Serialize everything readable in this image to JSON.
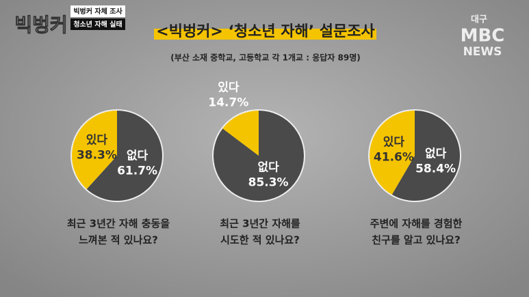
{
  "header": {
    "logo": "빅벙커",
    "tag1": "빅벙커 자체 조사",
    "tag2": "청소년 자해 실태",
    "station_top": "대구",
    "station_mid": "MBC",
    "station_bottom": "NEWS",
    "title": "<빅벙커> ‘청소년 자해’ 설문조사",
    "subtitle": "(부산 소재 중학교, 고등학교 각 1개교 : 응답자 89명)"
  },
  "chart_data": [
    {
      "type": "pie",
      "title_lines": [
        "최근 3년간 자해 충동을",
        "느껴본 적 있나요?"
      ],
      "categories": [
        "없다",
        "있다"
      ],
      "values": [
        61.7,
        38.3
      ],
      "value_labels": [
        "61.7%",
        "38.3%"
      ],
      "colors": [
        "#4a4a4a",
        "#f5c400"
      ]
    },
    {
      "type": "pie",
      "title_lines": [
        "최근 3년간 자해를",
        "시도한 적 있나요?"
      ],
      "categories": [
        "없다",
        "있다"
      ],
      "values": [
        85.3,
        14.7
      ],
      "value_labels": [
        "85.3%",
        "14.7%"
      ],
      "colors": [
        "#4a4a4a",
        "#f5c400"
      ]
    },
    {
      "type": "pie",
      "title_lines": [
        "주변에 자해를 경험한",
        "친구를 알고 있나요?"
      ],
      "categories": [
        "없다",
        "있다"
      ],
      "values": [
        58.4,
        41.6
      ],
      "value_labels": [
        "58.4%",
        "41.6%"
      ],
      "colors": [
        "#4a4a4a",
        "#f5c400"
      ]
    }
  ]
}
